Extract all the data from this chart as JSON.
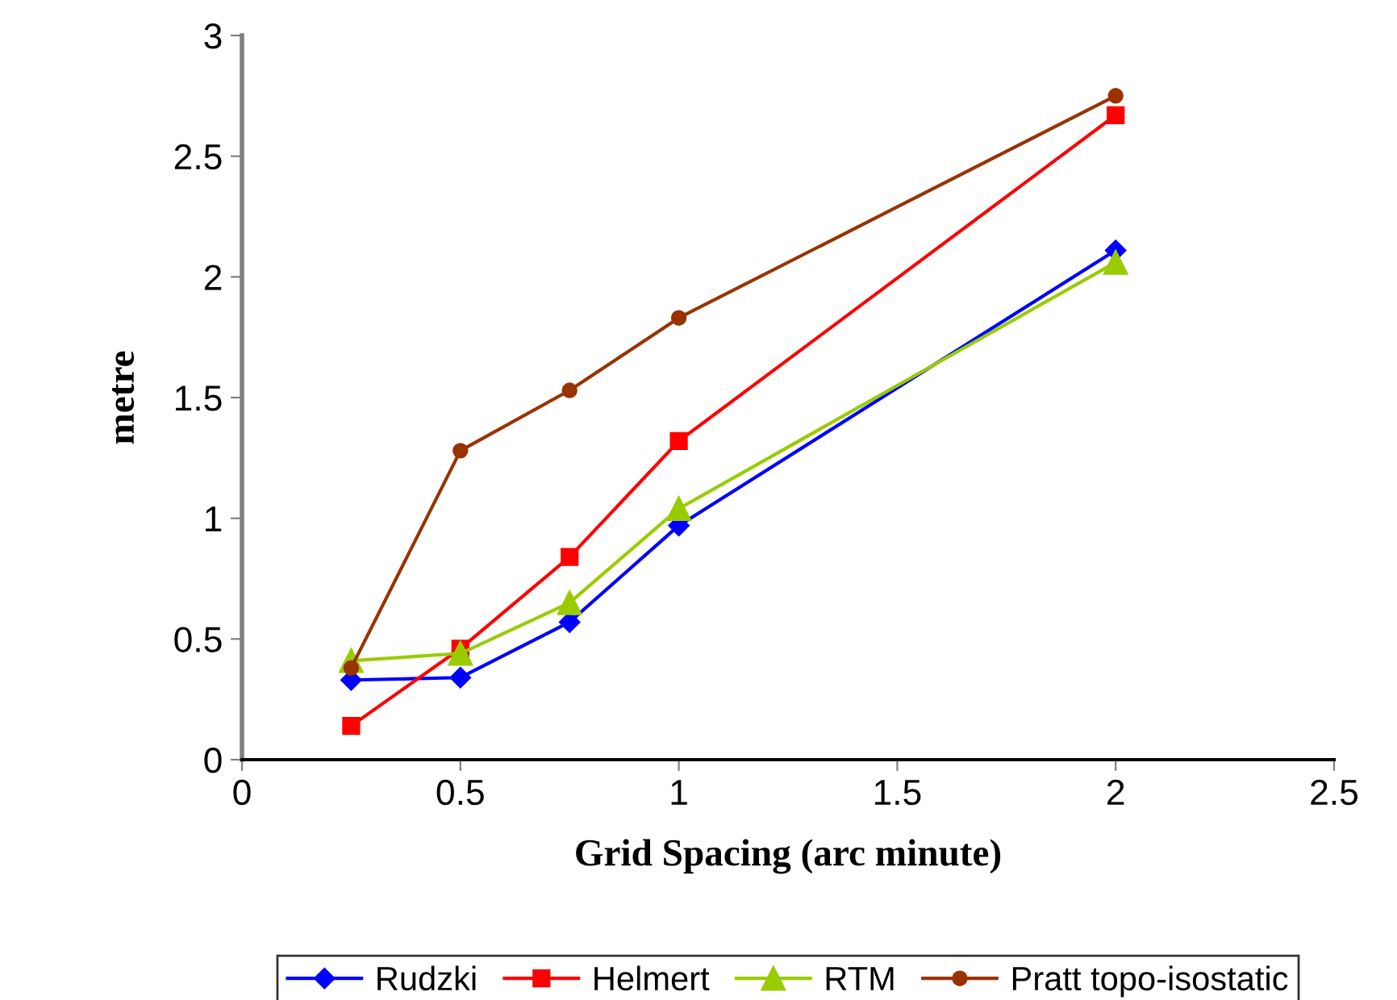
{
  "chart_data": {
    "type": "line",
    "xlabel": "Grid Spacing (arc minute)",
    "ylabel": "metre",
    "x": [
      0.25,
      0.5,
      0.75,
      1,
      2
    ],
    "xlim": [
      0,
      2.5
    ],
    "xticks": [
      0,
      0.5,
      1,
      1.5,
      2,
      2.5
    ],
    "ylim": [
      0,
      3
    ],
    "yticks": [
      0,
      0.5,
      1,
      1.5,
      2,
      2.5,
      3
    ],
    "grid": false,
    "legend": "bottom",
    "line_style": "solid",
    "series": [
      {
        "name": "Rudzki",
        "color": "#0000ff",
        "marker": "diamond",
        "values": [
          0.33,
          0.34,
          0.57,
          0.97,
          2.11
        ]
      },
      {
        "name": "Helmert",
        "color": "#ff0000",
        "marker": "square",
        "values": [
          0.14,
          0.46,
          0.84,
          1.32,
          2.67
        ]
      },
      {
        "name": "RTM",
        "color": "#99cc00",
        "marker": "triangle",
        "values": [
          0.41,
          0.44,
          0.65,
          1.04,
          2.06
        ]
      },
      {
        "name": "Pratt topo-isostatic",
        "color": "#993300",
        "marker": "circle",
        "values": [
          0.38,
          1.28,
          1.53,
          1.83,
          2.75
        ]
      }
    ]
  }
}
